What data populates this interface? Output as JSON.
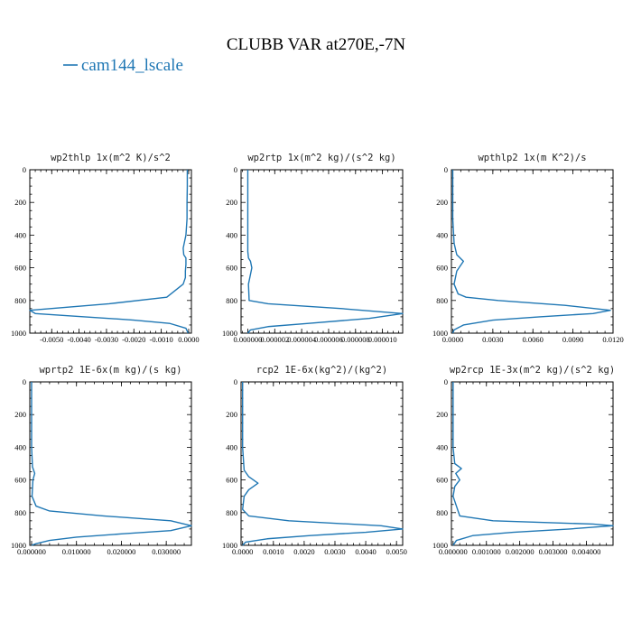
{
  "figure": {
    "title": "CLUBB VAR at270E,-7N",
    "legend": [
      {
        "label": "cam144_lscale",
        "color": "#1f77b4"
      }
    ],
    "line_color": "#1f77b4"
  },
  "chart_data": [
    {
      "type": "line",
      "title": "wp2thlp   1x(m^2 K)/s^2",
      "xlim": [
        -0.0058,
        0.0001
      ],
      "ylim": [
        1000,
        0
      ],
      "y_reversed": true,
      "x_ticks": [
        -0.005,
        -0.004,
        -0.003,
        -0.002,
        -0.001,
        0.0
      ],
      "x_tick_labels": [
        "-0.0050",
        "-0.0040",
        "-0.0030",
        "-0.0020",
        "-0.0010",
        "0.0000"
      ],
      "y_ticks": [
        0,
        200,
        400,
        600,
        800,
        1000
      ],
      "y_tick_labels": [
        "0",
        "200",
        "400",
        "600",
        "800",
        "1000"
      ],
      "series": [
        {
          "label": "cam144_lscale",
          "x": [
            -5e-05,
            -5e-05,
            -6e-05,
            -6e-05,
            -0.0001,
            -0.0002,
            -0.00018,
            -0.0001,
            -0.0001,
            -0.00012,
            -0.00012,
            -0.0002,
            -0.0008,
            -0.0029,
            -0.0058,
            -0.0056,
            -0.0038,
            -0.002,
            -0.0007,
            -0.0001,
            -2e-05
          ],
          "y": [
            0,
            100,
            200,
            300,
            400,
            480,
            520,
            540,
            580,
            620,
            660,
            700,
            780,
            820,
            860,
            880,
            900,
            920,
            940,
            970,
            1000
          ]
        }
      ]
    },
    {
      "type": "line",
      "title": "wp2rtp   1x(m^2 kg)/(s^2 kg)",
      "xlim": [
        -5e-07,
        1.15e-05
      ],
      "ylim": [
        1000,
        0
      ],
      "y_reversed": true,
      "x_ticks": [
        0.0,
        2e-06,
        4e-06,
        6e-06,
        8e-06,
        1e-05
      ],
      "x_tick_labels": [
        "0.000000",
        "0.000002",
        "0.000004",
        "0.000006",
        "0.000008",
        "0.000010"
      ],
      "y_ticks": [
        0,
        200,
        400,
        600,
        800,
        1000
      ],
      "y_tick_labels": [
        "0",
        "200",
        "400",
        "600",
        "800",
        "1000"
      ],
      "series": [
        {
          "label": "cam144_lscale",
          "x": [
            0.0,
            0.0,
            0.0,
            5e-08,
            2e-07,
            3e-07,
            2e-07,
            5e-08,
            1e-07,
            1.5e-06,
            7e-06,
            1.15e-05,
            9e-06,
            4.5e-06,
            1.5e-06,
            2e-07,
            0.0
          ],
          "y": [
            0,
            200,
            500,
            540,
            560,
            600,
            640,
            700,
            800,
            820,
            850,
            880,
            910,
            940,
            960,
            980,
            1000
          ]
        }
      ]
    },
    {
      "type": "line",
      "title": "wpthlp2   1x(m K^2)/s",
      "xlim": [
        -0.0001,
        0.012
      ],
      "ylim": [
        1000,
        0
      ],
      "y_reversed": true,
      "x_ticks": [
        0.0,
        0.003,
        0.006,
        0.009,
        0.012
      ],
      "x_tick_labels": [
        "0.0000",
        "0.0030",
        "0.0060",
        "0.0090",
        "0.0120"
      ],
      "y_ticks": [
        0,
        200,
        400,
        600,
        800,
        1000
      ],
      "y_tick_labels": [
        "0",
        "200",
        "400",
        "600",
        "800",
        "1000"
      ],
      "series": [
        {
          "label": "cam144_lscale",
          "x": [
            0.0,
            0.0,
            0.0001,
            0.0003,
            0.0008,
            0.0003,
            0.0001,
            0.0004,
            0.001,
            0.0034,
            0.0084,
            0.0118,
            0.0105,
            0.0065,
            0.003,
            0.0008,
            0.0001,
            0.0
          ],
          "y": [
            0,
            300,
            450,
            520,
            560,
            620,
            700,
            760,
            780,
            800,
            830,
            860,
            880,
            900,
            920,
            950,
            980,
            1000
          ]
        }
      ]
    },
    {
      "type": "line",
      "title": "wprtp2   1E-6x(m kg)/(s kg)",
      "xlim": [
        -0.0004,
        0.0356
      ],
      "ylim": [
        1000,
        0
      ],
      "y_reversed": true,
      "x_ticks": [
        0.0,
        0.01,
        0.02,
        0.03
      ],
      "x_tick_labels": [
        "0.000000",
        "0.010000",
        "0.020000",
        "0.030000"
      ],
      "y_ticks": [
        0,
        200,
        400,
        600,
        800,
        1000
      ],
      "y_tick_labels": [
        "0",
        "200",
        "400",
        "600",
        "800",
        "1000"
      ],
      "series": [
        {
          "label": "cam144_lscale",
          "x": [
            0.0,
            0.0,
            0.0002,
            0.0007,
            0.0003,
            0.0001,
            0.001,
            0.004,
            0.016,
            0.031,
            0.0356,
            0.031,
            0.02,
            0.01,
            0.004,
            0.001,
            0.0
          ],
          "y": [
            0,
            400,
            520,
            560,
            600,
            700,
            760,
            790,
            820,
            850,
            880,
            910,
            930,
            950,
            970,
            990,
            1000
          ]
        }
      ]
    },
    {
      "type": "line",
      "title": "rcp2   1E-6x(kg^2)/(kg^2)",
      "xlim": [
        -5e-05,
        0.0052
      ],
      "ylim": [
        1000,
        0
      ],
      "y_reversed": true,
      "x_ticks": [
        0.0,
        0.001,
        0.002,
        0.003,
        0.004,
        0.005
      ],
      "x_tick_labels": [
        "0.0000",
        "0.0010",
        "0.0020",
        "0.0030",
        "0.0040",
        "0.0050"
      ],
      "y_ticks": [
        0,
        200,
        400,
        600,
        800,
        1000
      ],
      "y_tick_labels": [
        "0",
        "200",
        "400",
        "600",
        "800",
        "1000"
      ],
      "series": [
        {
          "label": "cam144_lscale",
          "x": [
            0.0,
            0.0,
            5e-05,
            0.0002,
            0.0005,
            0.0002,
            5e-05,
            0.0,
            0.0002,
            0.0015,
            0.0045,
            0.0052,
            0.004,
            0.0022,
            0.0008,
            0.0001,
            0.0
          ],
          "y": [
            0,
            400,
            540,
            580,
            620,
            660,
            700,
            780,
            820,
            850,
            880,
            900,
            920,
            940,
            960,
            980,
            1000
          ]
        }
      ]
    },
    {
      "type": "line",
      "title": "wp2rcp   1E-3x(m^2 kg)/(s^2 kg)",
      "xlim": [
        -5e-05,
        0.0048
      ],
      "ylim": [
        1000,
        0
      ],
      "y_reversed": true,
      "x_ticks": [
        0.0,
        0.001,
        0.002,
        0.003,
        0.004
      ],
      "x_tick_labels": [
        "0.000000",
        "0.001000",
        "0.002000",
        "0.003000",
        "0.004000"
      ],
      "y_ticks": [
        0,
        200,
        400,
        600,
        800,
        1000
      ],
      "y_tick_labels": [
        "0",
        "200",
        "400",
        "600",
        "800",
        "1000"
      ],
      "series": [
        {
          "label": "cam144_lscale",
          "x": [
            0.0,
            0.0,
            5e-05,
            0.00025,
            8e-05,
            0.0002,
            5e-05,
            0.0,
            0.0002,
            0.0012,
            0.0042,
            0.0048,
            0.0035,
            0.0018,
            0.0006,
            0.0001,
            0.0
          ],
          "y": [
            0,
            400,
            500,
            530,
            560,
            600,
            640,
            700,
            820,
            850,
            870,
            880,
            900,
            920,
            940,
            970,
            1000
          ]
        }
      ]
    }
  ]
}
